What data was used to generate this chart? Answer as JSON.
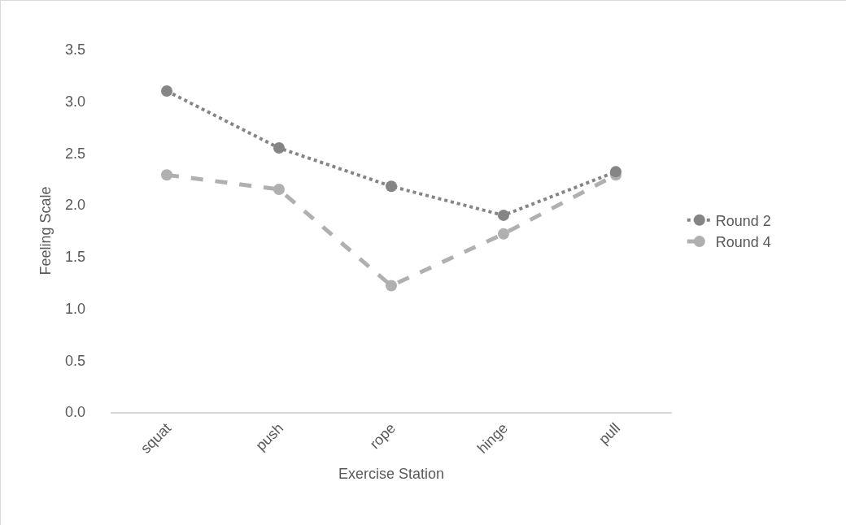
{
  "chart_data": {
    "type": "line",
    "xlabel": "Exercise Station",
    "ylabel": "Feeling Scale",
    "categories": [
      "squat",
      "push",
      "rope",
      "hinge",
      "pull"
    ],
    "series": [
      {
        "name": "Round 2",
        "color": "#858585",
        "line_style": "dotted",
        "values": [
          3.1,
          2.55,
          2.18,
          1.9,
          2.32
        ]
      },
      {
        "name": "Round 4",
        "color": "#b0b0b0",
        "line_style": "dashed",
        "values": [
          2.29,
          2.15,
          1.22,
          1.72,
          2.29
        ]
      }
    ],
    "ylim": [
      0,
      3.5
    ],
    "yticks": [
      {
        "value": 0,
        "label": "0.0"
      },
      0.5,
      {
        "value": 1,
        "label": "1.0"
      },
      1.5,
      {
        "value": 2,
        "label": "2.0"
      },
      2.5,
      {
        "value": 3,
        "label": "3.0"
      },
      3.5
    ],
    "grid": false,
    "legend": "right",
    "marker": "circle"
  }
}
